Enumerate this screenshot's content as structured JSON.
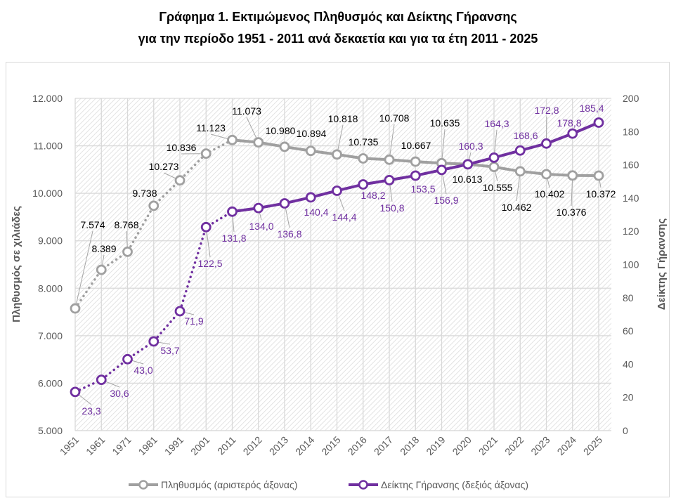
{
  "title_line1": "Γράφημα 1. Εκτιμώμενος Πληθυσμός και Δείκτης Γήρανσης",
  "title_line2": "για την περίοδο 1951 - 2011 ανά δεκαετία και για τα έτη 2011 - 2025",
  "chart_data": {
    "type": "line",
    "categories": [
      "1951",
      "1961",
      "1971",
      "1981",
      "1991",
      "2001",
      "2011",
      "2012",
      "2013",
      "2014",
      "2015",
      "2016",
      "2017",
      "2018",
      "2019",
      "2020",
      "2021",
      "2022",
      "2023",
      "2024",
      "2025"
    ],
    "ylabel_left": "Πληθυσμός σε χιλιάδες",
    "ylabel_right": "Δείκτης Γήρανσης",
    "ylim_left": [
      5000,
      12000
    ],
    "ylim_right": [
      0,
      200
    ],
    "yticks_left": [
      "5.000",
      "6.000",
      "7.000",
      "8.000",
      "9.000",
      "10.000",
      "11.000",
      "12.000"
    ],
    "yticks_right": [
      "0",
      "20",
      "40",
      "60",
      "80",
      "100",
      "120",
      "140",
      "160",
      "180",
      "200"
    ],
    "grid": true,
    "legend_position": "bottom",
    "series": [
      {
        "name": "Πληθυσμός (αριστερός άξονας)",
        "axis": "left",
        "color": "#a0a0a0",
        "values": [
          7574,
          8389,
          8768,
          9738,
          10273,
          10836,
          11123,
          11073,
          10980,
          10894,
          10818,
          10735,
          10708,
          10667,
          10635,
          10613,
          10555,
          10462,
          10402,
          10376,
          10372
        ],
        "labels": [
          "7.574",
          "8.389",
          "8.768",
          "9.738",
          "10.273",
          "10.836",
          "11.123",
          "11.073",
          "10.980",
          "10.894",
          "10.818",
          "10.735",
          "10.708",
          "10.667",
          "10.635",
          "10.613",
          "10.555",
          "10.462",
          "10.402",
          "10.376",
          "10.372"
        ],
        "label_color": "#000000"
      },
      {
        "name": "Δείκτης Γήρανσης (δεξιός άξονας)",
        "axis": "right",
        "color": "#7030a0",
        "values": [
          23.3,
          30.6,
          43.0,
          53.7,
          71.9,
          122.5,
          131.8,
          134.0,
          136.8,
          140.4,
          144.4,
          148.2,
          150.8,
          153.5,
          156.9,
          160.3,
          164.3,
          168.6,
          172.8,
          178.8,
          185.4
        ],
        "labels": [
          "23,3",
          "30,6",
          "43,0",
          "53,7",
          "71,9",
          "122,5",
          "131,8",
          "134,0",
          "136,8",
          "140,4",
          "144,4",
          "148,2",
          "150,8",
          "153,5",
          "156,9",
          "160,3",
          "164,3",
          "168,6",
          "172,8",
          "178,8",
          "185,4"
        ],
        "label_color": "#7030a0"
      }
    ],
    "line_style_note_visible": false
  }
}
